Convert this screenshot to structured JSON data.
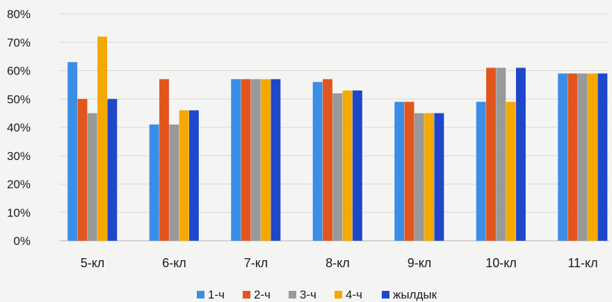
{
  "chart_data": {
    "type": "bar",
    "title": "",
    "xlabel": "",
    "ylabel": "",
    "ylim": [
      0,
      80
    ],
    "y_ticks": [
      "0%",
      "10%",
      "20%",
      "30%",
      "40%",
      "50%",
      "60%",
      "70%",
      "80%"
    ],
    "grid": true,
    "legend_position": "bottom",
    "categories": [
      "5-кл",
      "6-кл",
      "7-кл",
      "8-кл",
      "9-кл",
      "10-кл",
      "11-кл"
    ],
    "series": [
      {
        "name": "1-ч",
        "color": "#3a8ee6",
        "values": [
          63,
          41,
          57,
          56,
          49,
          49,
          59
        ]
      },
      {
        "name": "2-ч",
        "color": "#e2561d",
        "values": [
          50,
          57,
          57,
          57,
          49,
          61,
          59
        ]
      },
      {
        "name": "3-ч",
        "color": "#999999",
        "values": [
          45,
          41,
          57,
          52,
          45,
          61,
          59
        ]
      },
      {
        "name": "4-ч",
        "color": "#f5a800",
        "values": [
          72,
          46,
          57,
          53,
          45,
          49,
          59
        ]
      },
      {
        "name": "жылдык",
        "color": "#1f47c9",
        "values": [
          50,
          46,
          57,
          53,
          45,
          61,
          59
        ]
      }
    ]
  }
}
